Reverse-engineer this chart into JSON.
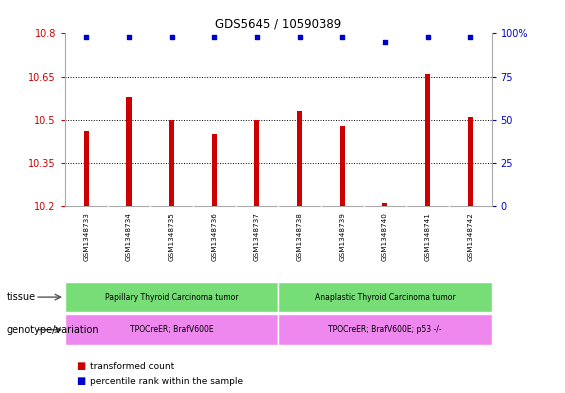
{
  "title": "GDS5645 / 10590389",
  "samples": [
    "GSM1348733",
    "GSM1348734",
    "GSM1348735",
    "GSM1348736",
    "GSM1348737",
    "GSM1348738",
    "GSM1348739",
    "GSM1348740",
    "GSM1348741",
    "GSM1348742"
  ],
  "transformed_count": [
    10.46,
    10.58,
    10.5,
    10.45,
    10.5,
    10.53,
    10.48,
    10.21,
    10.66,
    10.51
  ],
  "percentile_rank": [
    98,
    98,
    98,
    98,
    98,
    98,
    98,
    95,
    98,
    98
  ],
  "ylim_left": [
    10.2,
    10.8
  ],
  "ylim_right": [
    0,
    100
  ],
  "yticks_left": [
    10.2,
    10.35,
    10.5,
    10.65,
    10.8
  ],
  "ytick_labels_left": [
    "10.2",
    "10.35",
    "10.5",
    "10.65",
    "10.8"
  ],
  "yticks_right": [
    0,
    25,
    50,
    75,
    100
  ],
  "ytick_labels_right": [
    "0",
    "25",
    "50",
    "75",
    "100%"
  ],
  "bar_color": "#cc0000",
  "dot_color": "#0000cc",
  "grid_color": "#000000",
  "bar_width": 0.12,
  "tissue_groups": [
    {
      "label": "Papillary Thyroid Carcinoma tumor",
      "start": 0,
      "end": 5,
      "color": "#77dd77"
    },
    {
      "label": "Anaplastic Thyroid Carcinoma tumor",
      "start": 5,
      "end": 10,
      "color": "#77dd77"
    }
  ],
  "genotype_groups": [
    {
      "label": "TPOCreER; BrafV600E",
      "start": 0,
      "end": 5,
      "color": "#ee88ee"
    },
    {
      "label": "TPOCreER; BrafV600E; p53 -/-",
      "start": 5,
      "end": 10,
      "color": "#ee88ee"
    }
  ],
  "tissue_label": "tissue",
  "genotype_label": "genotype/variation",
  "legend_items": [
    {
      "color": "#cc0000",
      "label": "transformed count"
    },
    {
      "color": "#0000cc",
      "label": "percentile rank within the sample"
    }
  ],
  "bg_color": "#ffffff",
  "plot_bg_color": "#ffffff",
  "spine_color": "#aaaaaa",
  "tick_color_left": "#cc0000",
  "tick_color_right": "#0000cc",
  "label_bg_color": "#cccccc",
  "label_sep_color": "#aaaaaa"
}
